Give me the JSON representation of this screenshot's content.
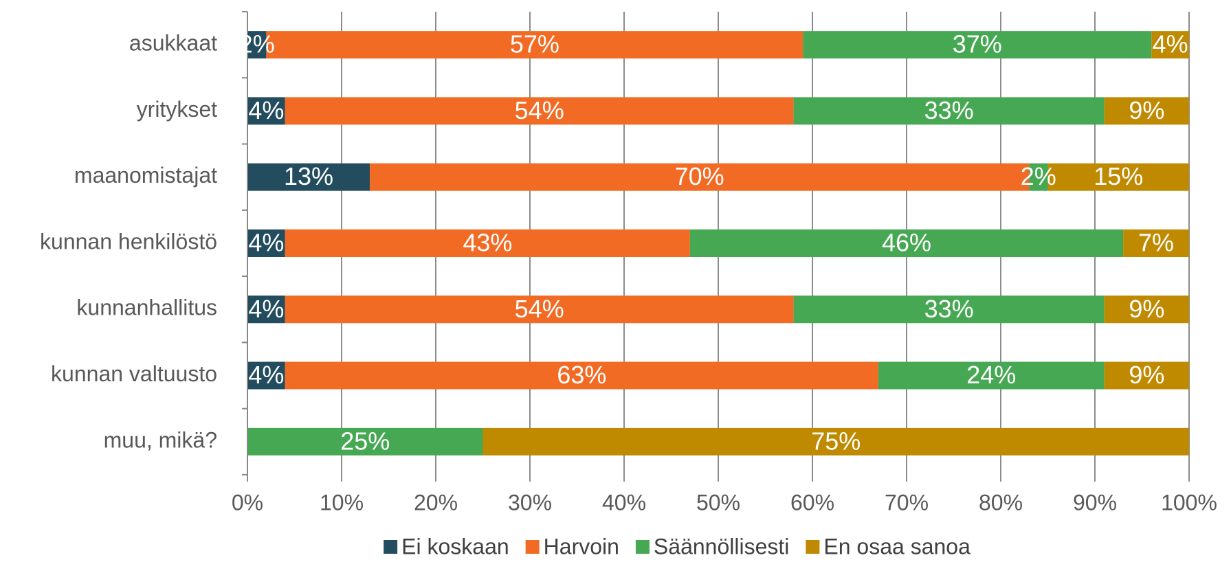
{
  "chart_data": {
    "type": "stacked-barh",
    "categories": [
      "asukkaat",
      "yritykset",
      "maanomistajat",
      "kunnan henkilöstö",
      "kunnanhallitus",
      "kunnan valtuusto",
      "muu, mikä?"
    ],
    "series": [
      {
        "name": "Ei koskaan",
        "color": "#234d5e",
        "values": [
          2,
          4,
          13,
          4,
          4,
          4,
          0
        ],
        "value_labels": [
          "2%",
          "4%",
          "13%",
          "4%",
          "4%",
          "4%",
          null
        ]
      },
      {
        "name": "Harvoin",
        "color": "#f26b24",
        "values": [
          57,
          54,
          70,
          43,
          54,
          63,
          0
        ],
        "value_labels": [
          "57%",
          "54%",
          "70%",
          "43%",
          "54%",
          "63%",
          null
        ]
      },
      {
        "name": "Säännöllisesti",
        "color": "#47a853",
        "values": [
          37,
          33,
          2,
          46,
          33,
          24,
          25
        ],
        "value_labels": [
          "37%",
          "33%",
          "2%",
          "46%",
          "33%",
          "24%",
          "25%"
        ]
      },
      {
        "name": "En osaa sanoa",
        "color": "#c08a00",
        "values": [
          4,
          9,
          15,
          7,
          9,
          9,
          75
        ],
        "value_labels": [
          "4%",
          "9%",
          "15%",
          "7%",
          "9%",
          "9%",
          "75%"
        ]
      }
    ],
    "xlim": [
      0,
      100
    ],
    "xticks": [
      {
        "value": 0,
        "label": "0%"
      },
      {
        "value": 10,
        "label": "10%"
      },
      {
        "value": 20,
        "label": "20%"
      },
      {
        "value": 30,
        "label": "30%"
      },
      {
        "value": 40,
        "label": "40%"
      },
      {
        "value": 50,
        "label": "50%"
      },
      {
        "value": 60,
        "label": "60%"
      },
      {
        "value": 70,
        "label": "70%"
      },
      {
        "value": 80,
        "label": "80%"
      },
      {
        "value": 90,
        "label": "90%"
      },
      {
        "value": 100,
        "label": "100%"
      }
    ],
    "grid": true,
    "legend": "bottom"
  }
}
